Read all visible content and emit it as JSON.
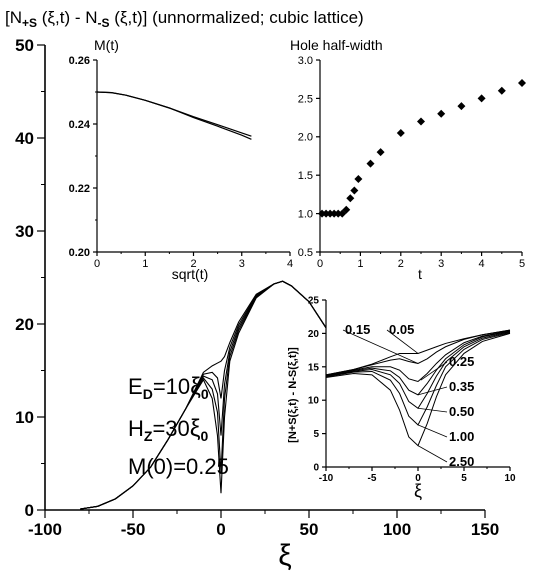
{
  "figure": {
    "title_main": "[N",
    "title_sub1": "+S",
    "title_mid": " (ξ,t) - N",
    "title_sub2": "-S",
    "title_end": " (ξ,t)] (unnormalized; cubic lattice)"
  },
  "params": {
    "ed_prefix": "E",
    "ed_sub": "D",
    "ed_eq": "=10",
    "ed_unit": "ξ",
    "ed_unit_sub": "0",
    "hz_prefix": "H",
    "hz_sub": "Z",
    "hz_eq": "=30",
    "hz_unit": "ξ",
    "hz_unit_sub": "0",
    "m0": "M(0)=0.25"
  },
  "inset_labels": {
    "ylabel": "[N+S(ξ,t) - N-S(ξ,t)]",
    "curve_labels": [
      "0.15",
      "0.05",
      "0.25",
      "0.35",
      "0.50",
      "1.00",
      "2.50"
    ]
  },
  "chart_data": [
    {
      "type": "line",
      "name": "main",
      "xlabel": "ξ",
      "ylabel": "",
      "xlim": [
        -100,
        150
      ],
      "ylim": [
        0,
        50
      ],
      "xticks": [
        -100,
        -50,
        0,
        50,
        100,
        150
      ],
      "yticks": [
        0,
        10,
        20,
        30,
        40,
        50
      ],
      "x": [
        -80,
        -70,
        -60,
        -50,
        -40,
        -30,
        -20,
        -10,
        -5,
        -2,
        0,
        2,
        5,
        10,
        20,
        30,
        35,
        40,
        50,
        60,
        70
      ],
      "series": [
        {
          "values": [
            0.1,
            0.4,
            1.2,
            2.6,
            4.6,
            7.6,
            10.9,
            14.0,
            12.0,
            8.0,
            1.8,
            10.0,
            16.0,
            19.0,
            22.8,
            24.3,
            24.6,
            24.1,
            22.4,
            19.5,
            15.2
          ]
        },
        {
          "values": [
            0.1,
            0.4,
            1.2,
            2.6,
            4.6,
            7.6,
            10.9,
            14.2,
            13.0,
            10.5,
            4.0,
            12.0,
            16.5,
            19.3,
            22.9,
            24.3,
            24.6,
            24.1,
            22.4,
            19.5,
            15.2
          ]
        },
        {
          "values": [
            0.1,
            0.4,
            1.2,
            2.6,
            4.6,
            7.6,
            10.9,
            14.4,
            14.0,
            12.5,
            8.0,
            13.5,
            17.0,
            19.6,
            23.0,
            24.3,
            24.6,
            24.1,
            22.4,
            19.5,
            15.2
          ]
        },
        {
          "values": [
            0.1,
            0.4,
            1.2,
            2.6,
            4.6,
            7.6,
            10.9,
            14.6,
            14.8,
            14.2,
            12.0,
            15.0,
            17.5,
            19.9,
            23.1,
            24.3,
            24.6,
            24.1,
            22.4,
            19.5,
            15.2
          ]
        },
        {
          "values": [
            0.1,
            0.4,
            1.2,
            2.6,
            4.6,
            7.6,
            10.9,
            14.8,
            15.5,
            15.8,
            16.0,
            16.5,
            18.0,
            20.2,
            23.2,
            24.3,
            24.6,
            24.1,
            22.4,
            19.5,
            15.2
          ]
        }
      ]
    },
    {
      "type": "line",
      "name": "M(t) inset",
      "title": "M(t)",
      "xlabel": "sqrt(t)",
      "ylabel": "",
      "xlim": [
        0,
        4
      ],
      "ylim": [
        0.2,
        0.26
      ],
      "xticks": [
        0,
        1,
        2,
        3,
        4
      ],
      "yticks": [
        0.2,
        0.22,
        0.24,
        0.26
      ],
      "x": [
        0,
        0.3,
        0.6,
        1.0,
        1.5,
        2.0,
        2.5,
        3.0,
        3.2
      ],
      "series": [
        {
          "values": [
            0.25,
            0.2498,
            0.249,
            0.2474,
            0.245,
            0.2423,
            0.2398,
            0.2372,
            0.2362
          ]
        },
        {
          "values": [
            0.25,
            0.2498,
            0.249,
            0.2474,
            0.245,
            0.242,
            0.2393,
            0.2365,
            0.2352
          ]
        }
      ]
    },
    {
      "type": "scatter",
      "name": "Hole half-width inset",
      "title": "Hole half-width",
      "xlabel": "t",
      "ylabel": "",
      "xlim": [
        0,
        5
      ],
      "ylim": [
        0.5,
        3.0
      ],
      "xticks": [
        0,
        1,
        2,
        3,
        4,
        5
      ],
      "yticks": [
        0.5,
        1.0,
        1.5,
        2.0,
        2.5,
        3.0
      ],
      "x": [
        0.05,
        0.15,
        0.25,
        0.35,
        0.45,
        0.55,
        0.65,
        0.75,
        0.85,
        0.95,
        1.25,
        1.5,
        2.0,
        2.5,
        3.0,
        3.5,
        4.0,
        4.5,
        5.0
      ],
      "y": [
        1.0,
        1.0,
        1.0,
        1.0,
        1.0,
        1.0,
        1.05,
        1.2,
        1.3,
        1.45,
        1.65,
        1.8,
        2.05,
        2.2,
        2.3,
        2.4,
        2.5,
        2.6,
        2.7
      ]
    },
    {
      "type": "line",
      "name": "hole inset",
      "xlabel": "ξ",
      "ylabel": "[N+S(ξ,t) - N-S(ξ,t)]",
      "xlim": [
        -10,
        10
      ],
      "ylim": [
        0,
        25
      ],
      "xticks": [
        -10,
        -5,
        0,
        5,
        10
      ],
      "yticks": [
        0,
        5,
        10,
        15,
        20,
        25
      ],
      "x": [
        -10,
        -7,
        -5,
        -3,
        -2,
        -1,
        0,
        1,
        2,
        3,
        5,
        7,
        10
      ],
      "series": [
        {
          "name": "0.05",
          "values": [
            13.8,
            14.6,
            15.4,
            16.5,
            17.0,
            17.0,
            17.0,
            17.5,
            18.0,
            18.5,
            19.2,
            19.8,
            20.5
          ]
        },
        {
          "name": "0.15",
          "values": [
            13.8,
            14.6,
            15.3,
            16.0,
            16.2,
            15.8,
            15.5,
            16.2,
            17.2,
            18.0,
            19.1,
            19.8,
            20.5
          ]
        },
        {
          "name": "0.25",
          "values": [
            13.7,
            14.5,
            15.0,
            15.0,
            14.5,
            13.2,
            12.8,
            14.0,
            15.5,
            16.8,
            18.6,
            19.6,
            20.4
          ]
        },
        {
          "name": "0.35",
          "values": [
            13.6,
            14.4,
            14.8,
            14.4,
            13.4,
            11.5,
            10.8,
            12.5,
            14.5,
            16.2,
            18.3,
            19.5,
            20.3
          ]
        },
        {
          "name": "0.50",
          "values": [
            13.6,
            14.3,
            14.6,
            13.8,
            12.5,
            9.8,
            8.8,
            11.0,
            13.6,
            15.7,
            18.0,
            19.3,
            20.2
          ]
        },
        {
          "name": "1.00",
          "values": [
            13.5,
            14.2,
            14.3,
            13.0,
            11.0,
            7.6,
            6.3,
            9.0,
            12.2,
            15.0,
            17.6,
            19.1,
            20.1
          ]
        },
        {
          "name": "2.50",
          "values": [
            13.4,
            14.0,
            13.8,
            11.5,
            8.5,
            4.5,
            3.2,
            6.5,
            10.5,
            13.8,
            17.0,
            18.8,
            20.0
          ]
        }
      ]
    }
  ]
}
